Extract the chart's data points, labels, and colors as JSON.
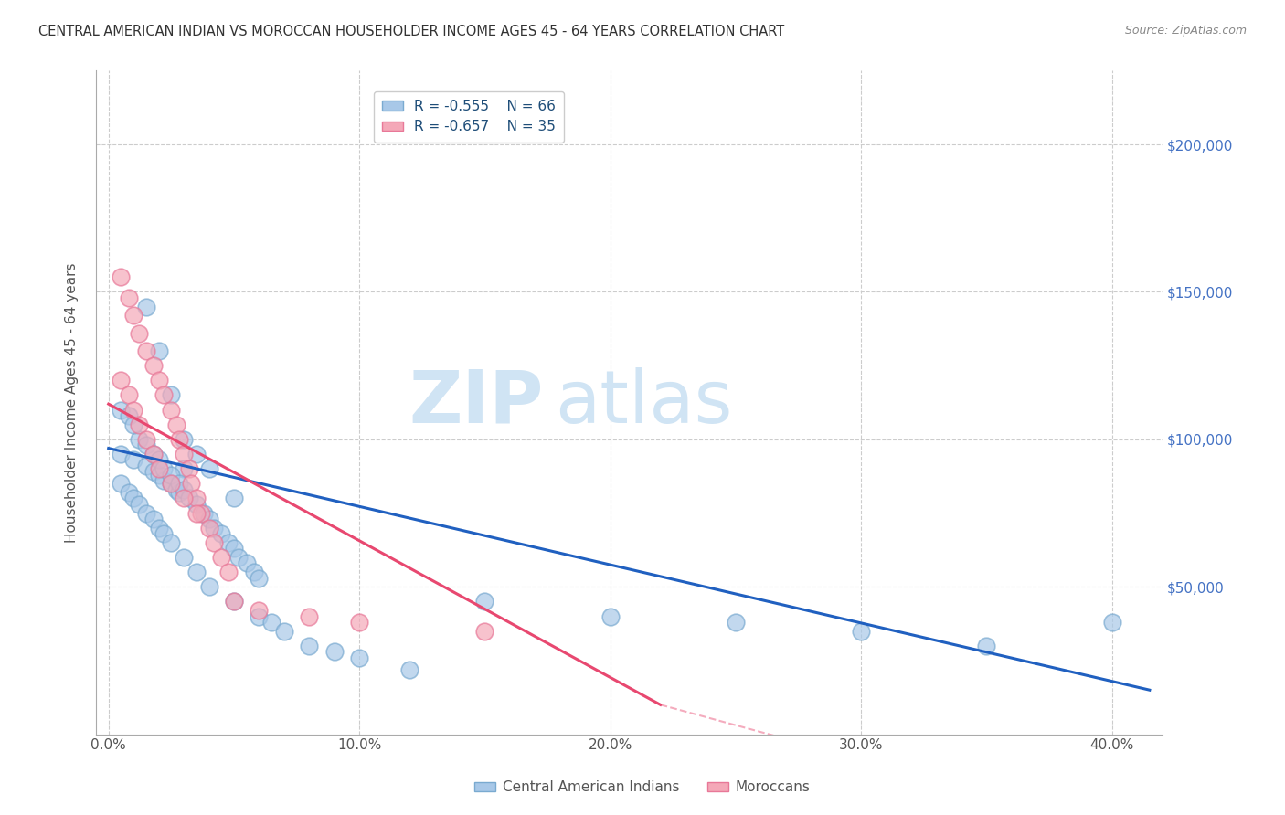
{
  "title": "CENTRAL AMERICAN INDIAN VS MOROCCAN HOUSEHOLDER INCOME AGES 45 - 64 YEARS CORRELATION CHART",
  "source": "Source: ZipAtlas.com",
  "ylabel": "Householder Income Ages 45 - 64 years",
  "xlabel_ticks": [
    "0.0%",
    "10.0%",
    "20.0%",
    "30.0%",
    "40.0%"
  ],
  "xlabel_values": [
    0.0,
    0.1,
    0.2,
    0.3,
    0.4
  ],
  "ylabel_ticks": [
    "$200,000",
    "$150,000",
    "$100,000",
    "$50,000"
  ],
  "ylabel_values": [
    200000,
    150000,
    100000,
    50000
  ],
  "xlim": [
    -0.005,
    0.42
  ],
  "ylim": [
    0,
    225000
  ],
  "legend1_R": "R = -0.555",
  "legend1_N": "N = 66",
  "legend2_R": "R = -0.657",
  "legend2_N": "N = 35",
  "blue_color": "#A8C8E8",
  "pink_color": "#F4A8B8",
  "blue_edge": "#7AAAD0",
  "pink_edge": "#E87898",
  "line_blue": "#2060C0",
  "line_pink": "#E84870",
  "watermark_zip": "ZIP",
  "watermark_atlas": "atlas",
  "watermark_color": "#D0E4F4",
  "blue_scatter_x": [
    0.005,
    0.01,
    0.015,
    0.018,
    0.02,
    0.022,
    0.025,
    0.027,
    0.028,
    0.03,
    0.012,
    0.015,
    0.018,
    0.02,
    0.022,
    0.025,
    0.028,
    0.03,
    0.032,
    0.035,
    0.038,
    0.04,
    0.042,
    0.045,
    0.048,
    0.05,
    0.052,
    0.055,
    0.058,
    0.06,
    0.005,
    0.008,
    0.01,
    0.012,
    0.015,
    0.018,
    0.02,
    0.022,
    0.025,
    0.03,
    0.035,
    0.04,
    0.05,
    0.06,
    0.065,
    0.07,
    0.08,
    0.09,
    0.1,
    0.12,
    0.005,
    0.008,
    0.01,
    0.015,
    0.02,
    0.025,
    0.03,
    0.035,
    0.04,
    0.05,
    0.15,
    0.2,
    0.25,
    0.3,
    0.35,
    0.4
  ],
  "blue_scatter_y": [
    95000,
    93000,
    91000,
    89000,
    88000,
    86000,
    85000,
    83000,
    82000,
    90000,
    100000,
    98000,
    95000,
    93000,
    90000,
    88000,
    85000,
    83000,
    80000,
    78000,
    75000,
    73000,
    70000,
    68000,
    65000,
    63000,
    60000,
    58000,
    55000,
    53000,
    85000,
    82000,
    80000,
    78000,
    75000,
    73000,
    70000,
    68000,
    65000,
    60000,
    55000,
    50000,
    45000,
    40000,
    38000,
    35000,
    30000,
    28000,
    26000,
    22000,
    110000,
    108000,
    105000,
    145000,
    130000,
    115000,
    100000,
    95000,
    90000,
    80000,
    45000,
    40000,
    38000,
    35000,
    30000,
    38000
  ],
  "pink_scatter_x": [
    0.005,
    0.008,
    0.01,
    0.012,
    0.015,
    0.018,
    0.02,
    0.022,
    0.025,
    0.027,
    0.028,
    0.03,
    0.032,
    0.033,
    0.035,
    0.037,
    0.04,
    0.042,
    0.045,
    0.048,
    0.005,
    0.008,
    0.01,
    0.012,
    0.015,
    0.018,
    0.02,
    0.025,
    0.03,
    0.035,
    0.05,
    0.06,
    0.08,
    0.1,
    0.15
  ],
  "pink_scatter_y": [
    155000,
    148000,
    142000,
    136000,
    130000,
    125000,
    120000,
    115000,
    110000,
    105000,
    100000,
    95000,
    90000,
    85000,
    80000,
    75000,
    70000,
    65000,
    60000,
    55000,
    120000,
    115000,
    110000,
    105000,
    100000,
    95000,
    90000,
    85000,
    80000,
    75000,
    45000,
    42000,
    40000,
    38000,
    35000
  ],
  "blue_line_x": [
    0.0,
    0.415
  ],
  "blue_line_y": [
    97000,
    15000
  ],
  "pink_line_x": [
    0.0,
    0.22
  ],
  "pink_line_y": [
    112000,
    10000
  ],
  "dashed_line_x": [
    0.22,
    0.35
  ],
  "dashed_line_y": [
    10000,
    -20000
  ],
  "background_color": "#FFFFFF",
  "grid_color": "#CCCCCC",
  "right_label_color": "#4472C4",
  "title_color": "#333333",
  "axis_label_color": "#555555"
}
